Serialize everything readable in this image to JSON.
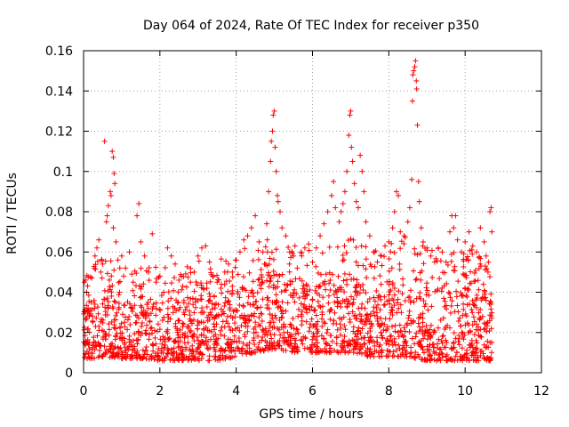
{
  "chart_data": {
    "type": "scatter",
    "title": "Day 064 of 2024, Rate Of TEC Index for receiver p350",
    "xlabel": "GPS time / hours",
    "ylabel": "ROTI / TECUs",
    "xlim": [
      0,
      12
    ],
    "ylim": [
      0,
      0.16
    ],
    "xticks": [
      0,
      2,
      4,
      6,
      8,
      10,
      12
    ],
    "xtick_labels": [
      "0",
      "2",
      "4",
      "6",
      "8",
      "10",
      "12"
    ],
    "yticks": [
      0,
      0.02,
      0.04,
      0.06,
      0.08,
      0.1,
      0.12,
      0.14,
      0.16
    ],
    "ytick_labels": [
      "0",
      "0.02",
      "0.04",
      "0.06",
      "0.08",
      "0.1",
      "0.12",
      "0.14",
      "0.16"
    ],
    "grid": true,
    "marker": "+",
    "color": "#ff0000",
    "series": [
      {
        "name": "p350",
        "points": [
          [
            0.02,
            0.045
          ],
          [
            0.05,
            0.046
          ],
          [
            0.08,
            0.04
          ],
          [
            0.1,
            0.031
          ],
          [
            0.15,
            0.028
          ],
          [
            0.2,
            0.035
          ],
          [
            0.3,
            0.058
          ],
          [
            0.35,
            0.062
          ],
          [
            0.4,
            0.066
          ],
          [
            0.45,
            0.05
          ],
          [
            0.5,
            0.054
          ],
          [
            0.55,
            0.115
          ],
          [
            0.6,
            0.075
          ],
          [
            0.62,
            0.078
          ],
          [
            0.65,
            0.083
          ],
          [
            0.7,
            0.09
          ],
          [
            0.72,
            0.088
          ],
          [
            0.75,
            0.11
          ],
          [
            0.78,
            0.107
          ],
          [
            0.8,
            0.099
          ],
          [
            0.82,
            0.094
          ],
          [
            0.78,
            0.072
          ],
          [
            0.85,
            0.065
          ],
          [
            0.9,
            0.056
          ],
          [
            0.95,
            0.052
          ],
          [
            1.0,
            0.058
          ],
          [
            1.05,
            0.048
          ],
          [
            1.1,
            0.052
          ],
          [
            1.2,
            0.06
          ],
          [
            1.3,
            0.045
          ],
          [
            1.4,
            0.078
          ],
          [
            1.45,
            0.084
          ],
          [
            1.5,
            0.065
          ],
          [
            1.6,
            0.058
          ],
          [
            1.7,
            0.05
          ],
          [
            1.8,
            0.069
          ],
          [
            1.9,
            0.045
          ],
          [
            2.0,
            0.048
          ],
          [
            2.1,
            0.04
          ],
          [
            2.2,
            0.062
          ],
          [
            2.3,
            0.058
          ],
          [
            2.4,
            0.054
          ],
          [
            2.5,
            0.046
          ],
          [
            2.6,
            0.043
          ],
          [
            2.8,
            0.045
          ],
          [
            2.9,
            0.05
          ],
          [
            3.0,
            0.058
          ],
          [
            3.1,
            0.062
          ],
          [
            3.2,
            0.063
          ],
          [
            3.3,
            0.055
          ],
          [
            3.4,
            0.048
          ],
          [
            3.5,
            0.045
          ],
          [
            3.6,
            0.042
          ],
          [
            3.7,
            0.05
          ],
          [
            3.8,
            0.054
          ],
          [
            3.9,
            0.05
          ],
          [
            4.0,
            0.056
          ],
          [
            4.1,
            0.06
          ],
          [
            4.2,
            0.066
          ],
          [
            4.3,
            0.068
          ],
          [
            4.4,
            0.072
          ],
          [
            4.5,
            0.078
          ],
          [
            4.6,
            0.065
          ],
          [
            4.7,
            0.06
          ],
          [
            4.8,
            0.074
          ],
          [
            4.85,
            0.09
          ],
          [
            4.9,
            0.105
          ],
          [
            4.92,
            0.115
          ],
          [
            4.95,
            0.12
          ],
          [
            4.97,
            0.128
          ],
          [
            5.0,
            0.13
          ],
          [
            5.02,
            0.112
          ],
          [
            5.05,
            0.1
          ],
          [
            5.08,
            0.088
          ],
          [
            5.1,
            0.085
          ],
          [
            5.15,
            0.08
          ],
          [
            5.2,
            0.072
          ],
          [
            5.3,
            0.068
          ],
          [
            5.4,
            0.06
          ],
          [
            5.5,
            0.058
          ],
          [
            5.6,
            0.052
          ],
          [
            5.7,
            0.06
          ],
          [
            5.8,
            0.062
          ],
          [
            5.9,
            0.064
          ],
          [
            6.0,
            0.055
          ],
          [
            6.1,
            0.062
          ],
          [
            6.2,
            0.068
          ],
          [
            6.3,
            0.074
          ],
          [
            6.4,
            0.08
          ],
          [
            6.5,
            0.088
          ],
          [
            6.55,
            0.095
          ],
          [
            6.6,
            0.082
          ],
          [
            6.7,
            0.075
          ],
          [
            6.75,
            0.08
          ],
          [
            6.8,
            0.084
          ],
          [
            6.85,
            0.09
          ],
          [
            6.9,
            0.1
          ],
          [
            6.95,
            0.118
          ],
          [
            6.98,
            0.128
          ],
          [
            7.0,
            0.13
          ],
          [
            7.02,
            0.112
          ],
          [
            7.05,
            0.105
          ],
          [
            7.1,
            0.094
          ],
          [
            7.15,
            0.085
          ],
          [
            7.2,
            0.082
          ],
          [
            7.25,
            0.108
          ],
          [
            7.3,
            0.1
          ],
          [
            7.35,
            0.09
          ],
          [
            7.4,
            0.075
          ],
          [
            7.5,
            0.068
          ],
          [
            7.6,
            0.06
          ],
          [
            7.7,
            0.055
          ],
          [
            7.8,
            0.058
          ],
          [
            7.9,
            0.063
          ],
          [
            8.0,
            0.065
          ],
          [
            8.1,
            0.072
          ],
          [
            8.15,
            0.08
          ],
          [
            8.2,
            0.09
          ],
          [
            8.25,
            0.088
          ],
          [
            8.3,
            0.07
          ],
          [
            8.4,
            0.068
          ],
          [
            8.5,
            0.075
          ],
          [
            8.55,
            0.082
          ],
          [
            8.6,
            0.096
          ],
          [
            8.62,
            0.135
          ],
          [
            8.63,
            0.148
          ],
          [
            8.65,
            0.15
          ],
          [
            8.68,
            0.152
          ],
          [
            8.7,
            0.155
          ],
          [
            8.72,
            0.145
          ],
          [
            8.73,
            0.141
          ],
          [
            8.75,
            0.123
          ],
          [
            8.78,
            0.095
          ],
          [
            8.8,
            0.085
          ],
          [
            8.85,
            0.072
          ],
          [
            8.9,
            0.065
          ],
          [
            9.0,
            0.062
          ],
          [
            9.1,
            0.058
          ],
          [
            9.2,
            0.055
          ],
          [
            9.3,
            0.062
          ],
          [
            9.4,
            0.06
          ],
          [
            9.5,
            0.055
          ],
          [
            9.6,
            0.07
          ],
          [
            9.65,
            0.078
          ],
          [
            9.7,
            0.072
          ],
          [
            9.75,
            0.078
          ],
          [
            9.8,
            0.066
          ],
          [
            9.9,
            0.06
          ],
          [
            10.0,
            0.065
          ],
          [
            10.1,
            0.07
          ],
          [
            10.2,
            0.063
          ],
          [
            10.3,
            0.06
          ],
          [
            10.4,
            0.072
          ],
          [
            10.5,
            0.065
          ],
          [
            10.55,
            0.058
          ],
          [
            10.6,
            0.05
          ],
          [
            10.65,
            0.08
          ],
          [
            10.68,
            0.082
          ],
          [
            10.7,
            0.07
          ]
        ]
      }
    ]
  },
  "chart_points": [],
  "band": [
    {
      "t": 0.0,
      "lo": 0.006,
      "hi": 0.032
    },
    {
      "t": 0.5,
      "lo": 0.008,
      "hi": 0.04
    },
    {
      "t": 1.0,
      "lo": 0.007,
      "hi": 0.036
    },
    {
      "t": 1.5,
      "lo": 0.007,
      "hi": 0.034
    },
    {
      "t": 2.0,
      "lo": 0.006,
      "hi": 0.036
    },
    {
      "t": 2.5,
      "lo": 0.006,
      "hi": 0.034
    },
    {
      "t": 3.0,
      "lo": 0.006,
      "hi": 0.04
    },
    {
      "t": 3.5,
      "lo": 0.006,
      "hi": 0.038
    },
    {
      "t": 4.0,
      "lo": 0.008,
      "hi": 0.044
    },
    {
      "t": 4.5,
      "lo": 0.01,
      "hi": 0.048
    },
    {
      "t": 5.0,
      "lo": 0.012,
      "hi": 0.05
    },
    {
      "t": 5.5,
      "lo": 0.01,
      "hi": 0.046
    },
    {
      "t": 6.0,
      "lo": 0.01,
      "hi": 0.044
    },
    {
      "t": 6.5,
      "lo": 0.01,
      "hi": 0.048
    },
    {
      "t": 7.0,
      "lo": 0.01,
      "hi": 0.05
    },
    {
      "t": 7.5,
      "lo": 0.008,
      "hi": 0.044
    },
    {
      "t": 8.0,
      "lo": 0.008,
      "hi": 0.046
    },
    {
      "t": 8.5,
      "lo": 0.008,
      "hi": 0.05
    },
    {
      "t": 9.0,
      "lo": 0.006,
      "hi": 0.046
    },
    {
      "t": 9.5,
      "lo": 0.006,
      "hi": 0.044
    },
    {
      "t": 10.0,
      "lo": 0.006,
      "hi": 0.044
    },
    {
      "t": 10.5,
      "lo": 0.006,
      "hi": 0.042
    },
    {
      "t": 10.7,
      "lo": 0.006,
      "hi": 0.04
    }
  ]
}
